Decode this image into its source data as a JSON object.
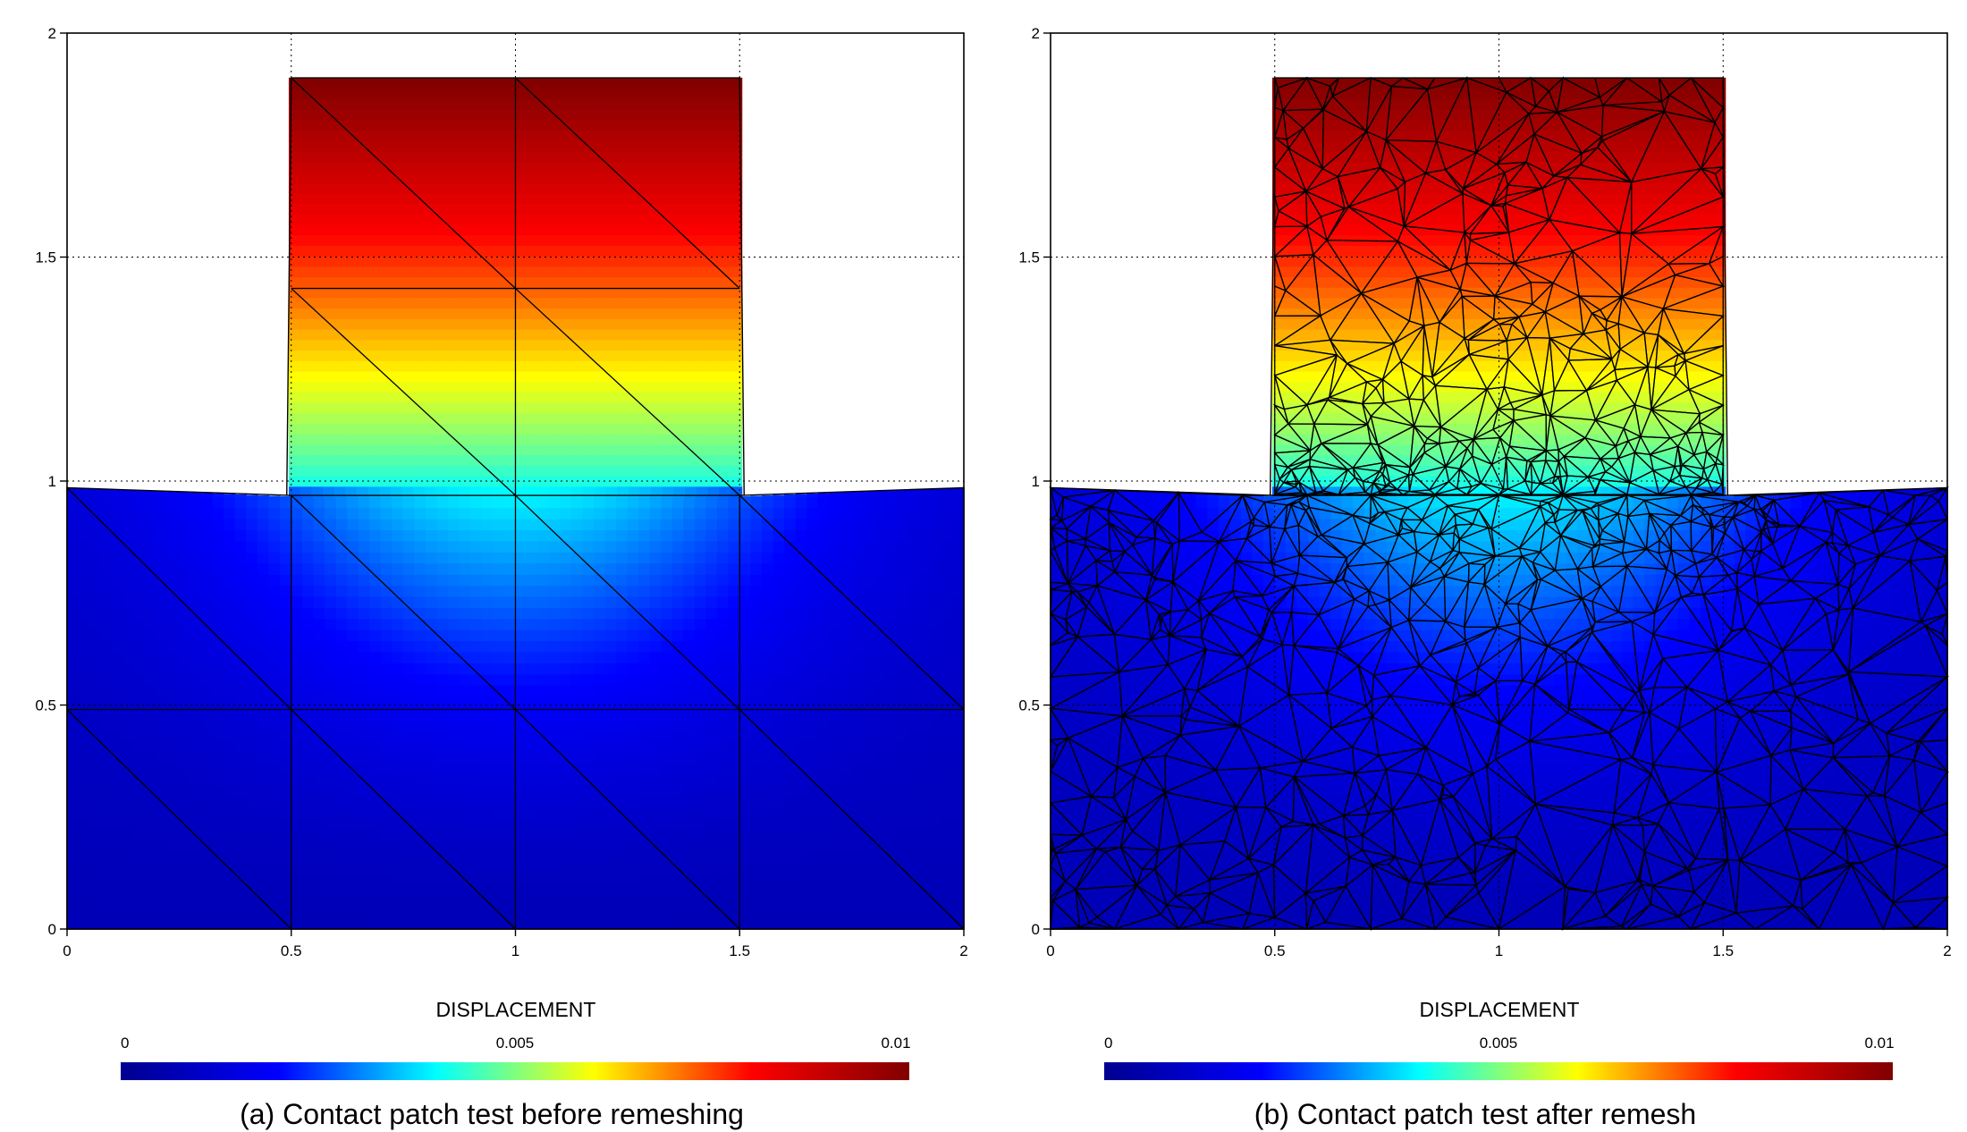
{
  "colormap": [
    "#00008f",
    "#0000ff",
    "#00ffff",
    "#ffff00",
    "#ff0000",
    "#800000"
  ],
  "chart_data": [
    {
      "type": "heatmap",
      "caption": "(a) Contact patch test before remeshing",
      "colorbar": {
        "title": "DISPLACEMENT",
        "min": 0,
        "max": 0.01,
        "ticks": [
          "0",
          "0.005",
          "0.01"
        ]
      },
      "x_ticks": [
        "0",
        "0.5",
        "1",
        "1.5",
        "2"
      ],
      "y_ticks": [
        "0",
        "0.5",
        "1",
        "1.5",
        "2"
      ],
      "xlim": [
        0,
        2
      ],
      "ylim": [
        0,
        2
      ],
      "grid": "dotted",
      "mesh": "structured, 16 triangles in block + 16 in punch",
      "regions": [
        {
          "name": "foundation block",
          "x": [
            0,
            2
          ],
          "y": [
            0,
            0.98
          ]
        },
        {
          "name": "punch",
          "x": [
            0.5,
            1.5
          ],
          "y": [
            0.97,
            1.9
          ]
        }
      ],
      "field_range": {
        "min": 0,
        "max": 0.01
      }
    },
    {
      "type": "heatmap",
      "caption": "(b) Contact patch test after remesh",
      "colorbar": {
        "title": "DISPLACEMENT",
        "min": 0,
        "max": 0.01,
        "ticks": [
          "0",
          "0.005",
          "0.01"
        ]
      },
      "x_ticks": [
        "0",
        "0.5",
        "1",
        "1.5",
        "2"
      ],
      "y_ticks": [
        "0",
        "0.5",
        "1",
        "1.5",
        "2"
      ],
      "xlim": [
        0,
        2
      ],
      "ylim": [
        0,
        2
      ],
      "grid": "dotted",
      "mesh": "unstructured triangles, refined near contact interface",
      "regions": [
        {
          "name": "foundation block",
          "x": [
            0,
            2
          ],
          "y": [
            0,
            0.99
          ]
        },
        {
          "name": "punch",
          "x": [
            0.5,
            1.5
          ],
          "y": [
            0.98,
            1.9
          ]
        }
      ],
      "field_range": {
        "min": 0,
        "max": 0.01
      }
    }
  ]
}
